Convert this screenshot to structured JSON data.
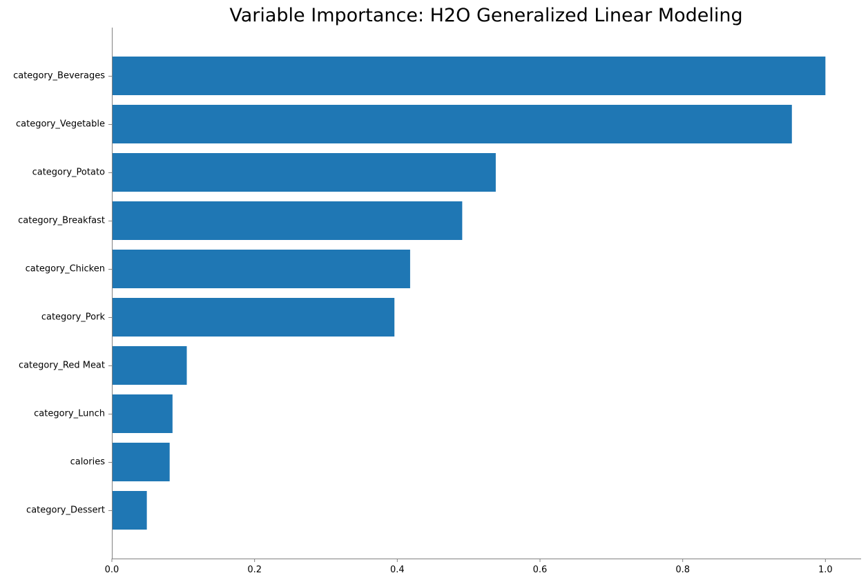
{
  "chart_data": {
    "type": "bar",
    "orientation": "horizontal",
    "title": "Variable Importance: H2O Generalized Linear Modeling",
    "xlabel": "",
    "ylabel": "",
    "xlim": [
      0,
      1.05
    ],
    "x_ticks": [
      0.0,
      0.2,
      0.4,
      0.6,
      0.8,
      1.0
    ],
    "x_tick_labels": [
      "0.0",
      "0.2",
      "0.4",
      "0.6",
      "0.8",
      "1.0"
    ],
    "bar_color": "#1f77b4",
    "grid": false,
    "legend": "none",
    "categories": [
      "category_Beverages",
      "category_Vegetable",
      "category_Potato",
      "category_Breakfast",
      "category_Chicken",
      "category_Pork",
      "category_Red Meat",
      "category_Lunch",
      "calories",
      "category_Dessert"
    ],
    "values": [
      1.0,
      0.953,
      0.538,
      0.491,
      0.418,
      0.396,
      0.105,
      0.085,
      0.081,
      0.049
    ]
  }
}
